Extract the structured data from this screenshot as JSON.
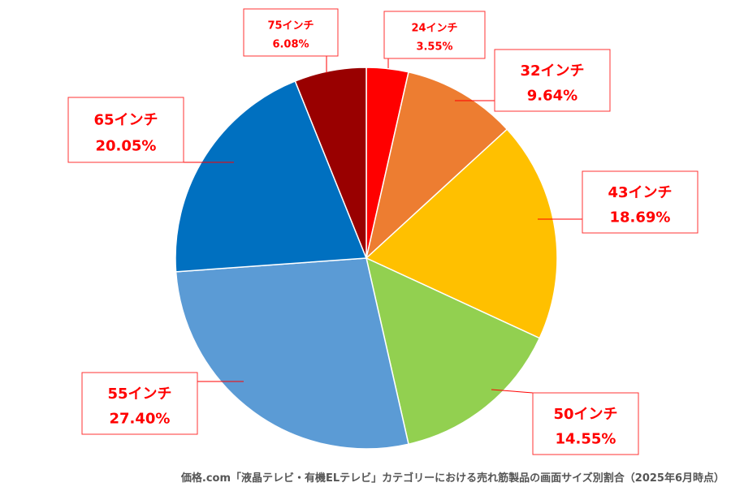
{
  "chart_data": {
    "type": "pie",
    "title": "",
    "start": "12 o'clock, clockwise",
    "slices": [
      {
        "label": "24インチ",
        "pct_text": "3.55%",
        "value": 3.55,
        "color": "#ff0000"
      },
      {
        "label": "32インチ",
        "pct_text": "9.64%",
        "value": 9.64,
        "color": "#ed7d31"
      },
      {
        "label": "43インチ",
        "pct_text": "18.69%",
        "value": 18.69,
        "color": "#ffc000"
      },
      {
        "label": "50インチ",
        "pct_text": "14.55%",
        "value": 14.55,
        "color": "#92d050"
      },
      {
        "label": "55インチ",
        "pct_text": "27.40%",
        "value": 27.4,
        "color": "#5b9bd5"
      },
      {
        "label": "65インチ",
        "pct_text": "20.05%",
        "value": 20.05,
        "color": "#0070c0"
      },
      {
        "label": "75インチ",
        "pct_text": "6.08%",
        "value": 6.08,
        "color": "#990000"
      }
    ]
  },
  "caption": "価格.com「液晶テレビ・有機ELテレビ」カテゴリーにおける売れ筋製品の画面サイズ別割合（2025年6月時点）"
}
